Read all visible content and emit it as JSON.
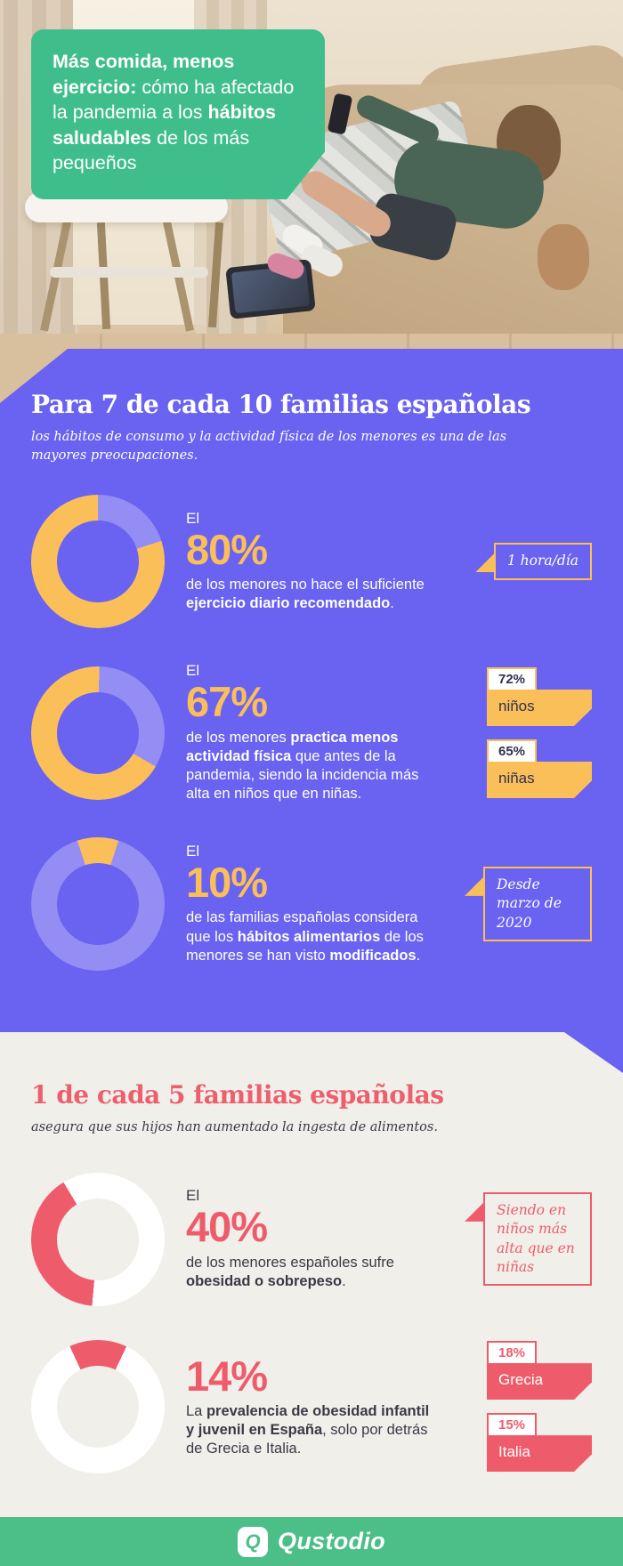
{
  "colors": {
    "purple": "#6A62F0",
    "purple_track": "#948DF4",
    "yellow": "#FBBF59",
    "red": "#EE5C6C",
    "green_box": "#3FBE8C",
    "green_footer": "#4CBE87",
    "navy": "#2E3150",
    "light_bg": "#F1EFEA"
  },
  "header": {
    "title_bold1": "Más comida, menos ejercicio:",
    "title_rest": " cómo ha afectado la pandemia a los ",
    "title_bold2": "hábitos saludables",
    "title_tail": " de los más pequeños"
  },
  "section_purple": {
    "title": "Para 7 de cada 10 familias españolas",
    "subtitle": "los hábitos de consumo y la actividad física de los menores es una de las mayores preocupaciones.",
    "blocks": [
      {
        "el": "El",
        "pct": "80%",
        "body_pre": "de los menores no hace el suficiente ",
        "body_bold": "ejercicio diario recomendado",
        "body_post": ".",
        "callout": "1 hora/día"
      },
      {
        "el": "El",
        "pct": "67%",
        "body_pre": "de los menores ",
        "body_bold": "practica menos actividad física",
        "body_post": " que antes de la pandemia, siendo la incidencia más alta en niños que en niñas."
      },
      {
        "el": "El",
        "pct": "10%",
        "body_pre": "de las familias españolas considera que los ",
        "body_bold": "hábitos alimentarios",
        "body_mid": " de los menores se han visto ",
        "body_bold2": "modificados",
        "body_post": ".",
        "callout": "Desde marzo de 2020"
      }
    ]
  },
  "section_light": {
    "title": "1 de cada 5 familias españolas",
    "subtitle": "asegura que sus hijos han aumentado la ingesta de alimentos.",
    "blocks": [
      {
        "el": "El",
        "pct": "40%",
        "body_pre": "de los menores españoles sufre ",
        "body_bold": "obesidad o sobrepeso",
        "body_post": ".",
        "callout": "Siendo en niños más alta que en niñas"
      },
      {
        "pct": "14%",
        "body_pre": "La ",
        "body_bold": "prevalencia de obesidad infantil y juvenil en España",
        "body_post": ", solo por detrás de Grecia e Italia."
      }
    ]
  },
  "chart_data": {
    "type": "pie",
    "subtype": "donut-set",
    "donuts": [
      {
        "label": "menores que no hacen el ejercicio diario recomendado",
        "value": 80,
        "unit": "%",
        "color": "#FBBF59",
        "track": "#948DF4",
        "start": 72
      },
      {
        "label": "menores que practican menos actividad física que antes de la pandemia",
        "value": 67,
        "unit": "%",
        "color": "#FBBF59",
        "track": "#948DF4",
        "start": 120
      },
      {
        "label": "familias que consideran modificados los hábitos alimentarios",
        "value": 10,
        "unit": "%",
        "color": "#FBBF59",
        "track": "#948DF4",
        "start": -18
      },
      {
        "label": "menores españoles con obesidad o sobrepeso",
        "value": 40,
        "unit": "%",
        "color": "#EE5C6C",
        "track": "#FFFFFF",
        "start": 185
      },
      {
        "label": "prevalencia de obesidad infantil y juvenil en España",
        "value": 14,
        "unit": "%",
        "color": "#EE5C6C",
        "track": "#FFFFFF",
        "start": -25
      }
    ],
    "tags": [
      {
        "pct": "72%",
        "label": "niños"
      },
      {
        "pct": "65%",
        "label": "niñas"
      },
      {
        "pct": "18%",
        "label": "Grecia"
      },
      {
        "pct": "15%",
        "label": "Italia"
      }
    ]
  },
  "footer": {
    "logo_letter": "Q",
    "brand": "Qustodio"
  }
}
